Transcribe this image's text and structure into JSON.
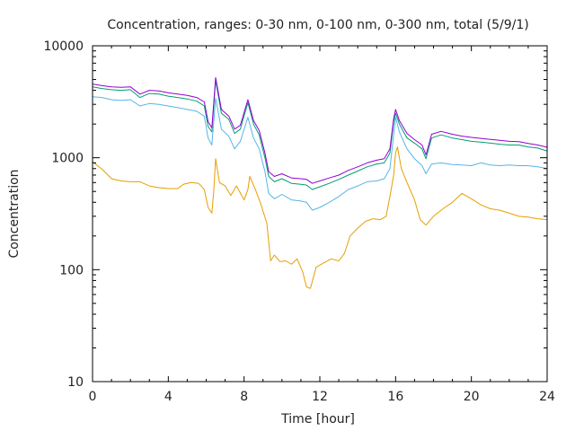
{
  "chart_data": {
    "type": "line",
    "title": "Concentration, ranges: 0-30 nm, 0-100 nm, 0-300 nm, total (5/9/1)",
    "xlabel": "Time [hour]",
    "ylabel": "Concentration",
    "xlim": [
      0,
      24
    ],
    "ylim": [
      10,
      10000
    ],
    "yscale": "log",
    "x_ticks": [
      0,
      4,
      8,
      12,
      16,
      20,
      24
    ],
    "x_tick_labels": [
      "0",
      "4",
      "8",
      "12",
      "16",
      "20",
      "24"
    ],
    "y_ticks": [
      10,
      100,
      1000,
      10000
    ],
    "y_tick_labels": [
      "10",
      "100",
      "1000",
      "10000"
    ],
    "grid": false,
    "legend": "none",
    "series": [
      {
        "name": "0-30 nm",
        "color": "#e69f00",
        "x": [
          0,
          0.5,
          1,
          1.5,
          2,
          2.5,
          3,
          3.5,
          4,
          4.5,
          4.8,
          5.2,
          5.6,
          5.9,
          6.1,
          6.3,
          6.4,
          6.5,
          6.7,
          7,
          7.3,
          7.6,
          8,
          8.2,
          8.3,
          8.6,
          8.9,
          9.2,
          9.4,
          9.6,
          9.9,
          10.2,
          10.5,
          10.8,
          11.1,
          11.3,
          11.5,
          11.8,
          12.2,
          12.6,
          13,
          13.3,
          13.6,
          14,
          14.4,
          14.8,
          15.2,
          15.5,
          15.7,
          15.9,
          16,
          16.1,
          16.3,
          16.6,
          17,
          17.3,
          17.6,
          18,
          18.5,
          19,
          19.5,
          20,
          20.5,
          21,
          21.5,
          22,
          22.5,
          23,
          23.5,
          24
        ],
        "values": [
          920,
          790,
          650,
          620,
          610,
          610,
          560,
          540,
          530,
          530,
          580,
          600,
          590,
          520,
          360,
          320,
          500,
          980,
          600,
          560,
          460,
          560,
          420,
          520,
          680,
          520,
          380,
          260,
          120,
          135,
          118,
          120,
          112,
          125,
          95,
          70,
          68,
          105,
          115,
          125,
          120,
          140,
          200,
          235,
          270,
          285,
          280,
          300,
          450,
          700,
          1100,
          1250,
          800,
          600,
          420,
          280,
          250,
          300,
          350,
          400,
          480,
          430,
          380,
          350,
          340,
          320,
          300,
          295,
          285,
          280
        ]
      },
      {
        "name": "0-100 nm",
        "color": "#56b4e9",
        "x": [
          0,
          0.5,
          1,
          1.5,
          2,
          2.5,
          3,
          3.5,
          4,
          4.5,
          5,
          5.5,
          5.9,
          6.1,
          6.3,
          6.5,
          6.8,
          7.2,
          7.5,
          7.8,
          8.2,
          8.5,
          8.8,
          9.1,
          9.3,
          9.6,
          10,
          10.5,
          11,
          11.3,
          11.6,
          12,
          12.5,
          13,
          13.5,
          14,
          14.5,
          15,
          15.4,
          15.7,
          15.9,
          16,
          16.2,
          16.6,
          17,
          17.4,
          17.6,
          17.9,
          18.4,
          19,
          19.5,
          20,
          20.5,
          21,
          21.5,
          22,
          22.5,
          23,
          23.5,
          24
        ],
        "values": [
          3500,
          3450,
          3300,
          3250,
          3300,
          2900,
          3050,
          3000,
          2900,
          2800,
          2700,
          2600,
          2350,
          1500,
          1300,
          3400,
          1800,
          1550,
          1200,
          1400,
          2300,
          1500,
          1200,
          750,
          480,
          430,
          470,
          420,
          410,
          400,
          340,
          360,
          400,
          450,
          520,
          560,
          610,
          620,
          650,
          800,
          1600,
          2300,
          1700,
          1200,
          980,
          850,
          720,
          880,
          900,
          870,
          860,
          850,
          900,
          860,
          850,
          860,
          850,
          850,
          830,
          800
        ]
      },
      {
        "name": "0-300 nm",
        "color": "#009e73",
        "x": [
          0,
          0.5,
          1,
          1.5,
          2,
          2.5,
          3,
          3.5,
          4,
          4.5,
          5,
          5.5,
          5.9,
          6.1,
          6.3,
          6.5,
          6.8,
          7.2,
          7.5,
          7.8,
          8.2,
          8.5,
          8.8,
          9.1,
          9.3,
          9.6,
          10,
          10.5,
          11,
          11.3,
          11.6,
          12,
          12.5,
          13,
          13.5,
          14,
          14.5,
          15,
          15.4,
          15.7,
          15.9,
          16,
          16.2,
          16.6,
          17,
          17.4,
          17.6,
          17.9,
          18.4,
          19,
          19.5,
          20,
          20.5,
          21,
          21.5,
          22,
          22.5,
          23,
          23.5,
          24
        ],
        "values": [
          4300,
          4150,
          4050,
          4000,
          4050,
          3450,
          3750,
          3700,
          3550,
          3450,
          3350,
          3200,
          2900,
          1900,
          1700,
          4900,
          2500,
          2200,
          1650,
          1800,
          3100,
          2000,
          1600,
          1000,
          680,
          610,
          650,
          590,
          580,
          570,
          520,
          550,
          590,
          640,
          700,
          760,
          830,
          880,
          900,
          1100,
          2100,
          2500,
          2000,
          1500,
          1350,
          1200,
          980,
          1500,
          1600,
          1500,
          1450,
          1400,
          1380,
          1350,
          1320,
          1300,
          1300,
          1250,
          1220,
          1150
        ]
      },
      {
        "name": "total",
        "color": "#9400d3",
        "x": [
          0,
          0.5,
          1,
          1.5,
          2,
          2.5,
          3,
          3.5,
          4,
          4.5,
          5,
          5.5,
          5.9,
          6.1,
          6.3,
          6.5,
          6.8,
          7.2,
          7.5,
          7.8,
          8.2,
          8.5,
          8.8,
          9.1,
          9.3,
          9.6,
          10,
          10.5,
          11,
          11.3,
          11.6,
          12,
          12.5,
          13,
          13.5,
          14,
          14.5,
          15,
          15.4,
          15.7,
          15.9,
          16,
          16.2,
          16.6,
          17,
          17.4,
          17.6,
          17.9,
          18.4,
          19,
          19.5,
          20,
          20.5,
          21,
          21.5,
          22,
          22.5,
          23,
          23.5,
          24
        ],
        "values": [
          4550,
          4400,
          4300,
          4250,
          4300,
          3700,
          4000,
          3950,
          3800,
          3700,
          3600,
          3450,
          3150,
          2100,
          1850,
          5200,
          2700,
          2350,
          1800,
          1950,
          3300,
          2150,
          1750,
          1100,
          750,
          680,
          720,
          660,
          650,
          640,
          590,
          620,
          660,
          700,
          770,
          830,
          900,
          950,
          980,
          1200,
          2250,
          2700,
          2150,
          1650,
          1450,
          1300,
          1060,
          1620,
          1720,
          1620,
          1560,
          1520,
          1490,
          1460,
          1430,
          1400,
          1390,
          1340,
          1300,
          1240
        ]
      }
    ]
  }
}
